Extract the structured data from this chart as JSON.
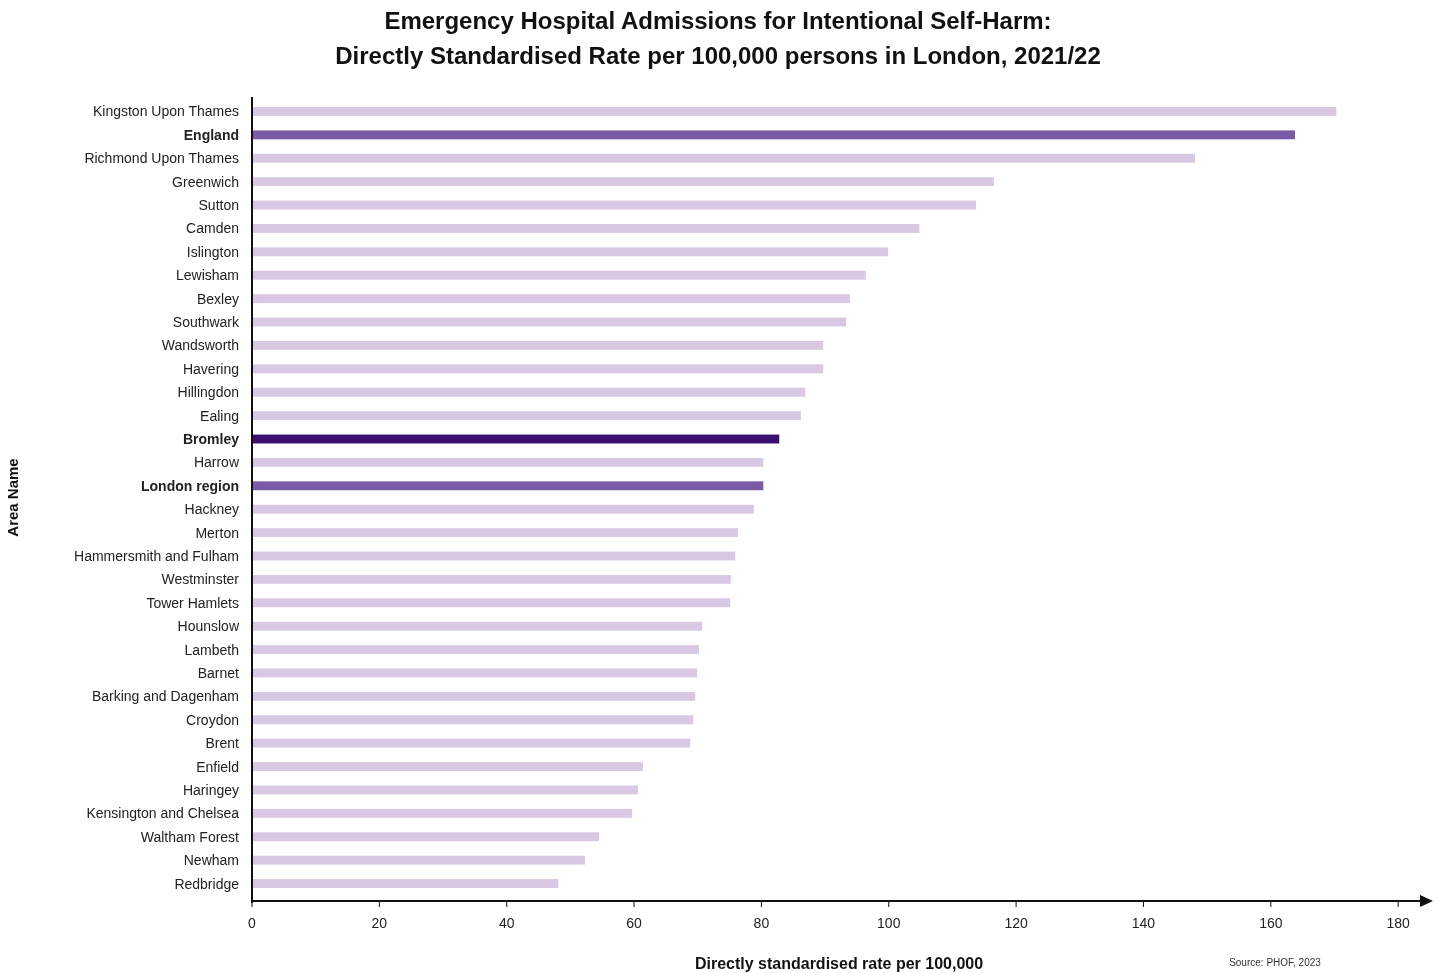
{
  "chart_data": {
    "type": "bar",
    "orientation": "horizontal",
    "title": "Emergency Hospital Admissions for Intentional Self-Harm:\nDirectly Standardised Rate per 100,000 persons in London, 2021/22",
    "xlabel": "Directly standardised rate per 100,000",
    "ylabel": "Area Name",
    "annotations": [
      "Source: PHOF, 2023"
    ],
    "categories": [
      "Kingston Upon Thames",
      "England",
      "Richmond Upon Thames",
      "Greenwich",
      "Sutton",
      "Camden",
      "Islington",
      "Lewisham",
      "Bexley",
      "Southwark",
      "Wandsworth",
      "Havering",
      "Hillingdon",
      "Ealing",
      "Bromley",
      "Harrow",
      "London region",
      "Hackney",
      "Merton",
      "Hammersmith and Fulham",
      "Westminster",
      "Tower Hamlets",
      "Hounslow",
      "Lambeth",
      "Barnet",
      "Barking and Dagenham",
      "Croydon",
      "Brent",
      "Enfield",
      "Haringey",
      "Kensington and Chelsea",
      "Waltham Forest",
      "Newham",
      "Redbridge"
    ],
    "values": [
      170.3,
      163.8,
      148.1,
      116.5,
      113.7,
      104.8,
      99.9,
      96.4,
      93.9,
      93.3,
      89.7,
      89.7,
      86.9,
      86.2,
      82.8,
      80.3,
      80.3,
      78.8,
      76.3,
      75.9,
      75.2,
      75.1,
      70.7,
      70.2,
      69.9,
      69.6,
      69.3,
      68.8,
      61.4,
      60.6,
      59.7,
      54.5,
      52.3,
      48.1
    ],
    "colors": [
      "#d9c8e3",
      "#7b5aa6",
      "#d9c8e3",
      "#d9c8e3",
      "#d9c8e3",
      "#d9c8e3",
      "#d9c8e3",
      "#d9c8e3",
      "#d9c8e3",
      "#d9c8e3",
      "#d9c8e3",
      "#d9c8e3",
      "#d9c8e3",
      "#d9c8e3",
      "#3b0f6e",
      "#d9c8e3",
      "#7b5aa6",
      "#d9c8e3",
      "#d9c8e3",
      "#d9c8e3",
      "#d9c8e3",
      "#d9c8e3",
      "#d9c8e3",
      "#d9c8e3",
      "#d9c8e3",
      "#d9c8e3",
      "#d9c8e3",
      "#d9c8e3",
      "#d9c8e3",
      "#d9c8e3",
      "#d9c8e3",
      "#d9c8e3",
      "#d9c8e3",
      "#d9c8e3"
    ],
    "xlim": [
      0,
      185
    ],
    "xticks": [
      0,
      20,
      40,
      60,
      80,
      100,
      120,
      140,
      160,
      180
    ],
    "grid": false
  }
}
